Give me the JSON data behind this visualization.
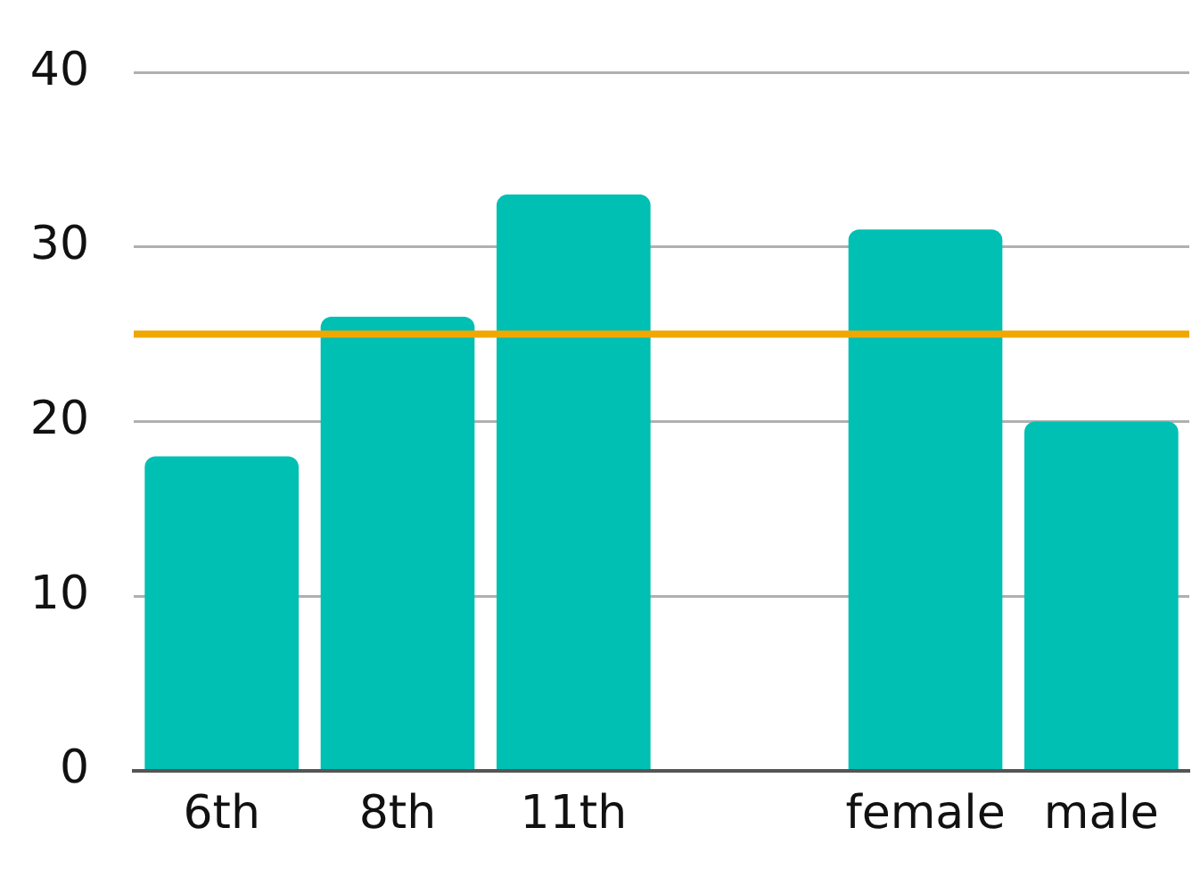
{
  "chart_data": {
    "type": "bar",
    "categories": [
      "6th",
      "8th",
      "11th",
      null,
      "female",
      "male"
    ],
    "values": [
      18,
      26,
      33,
      null,
      31,
      20
    ],
    "color": "#00bfb3",
    "ylim": [
      0,
      40
    ],
    "yticks": [
      0,
      10,
      20,
      30,
      40
    ],
    "grid": "y",
    "ref_lines": [
      {
        "axis": "y",
        "value": 25,
        "color": "#f0a800"
      }
    ]
  }
}
